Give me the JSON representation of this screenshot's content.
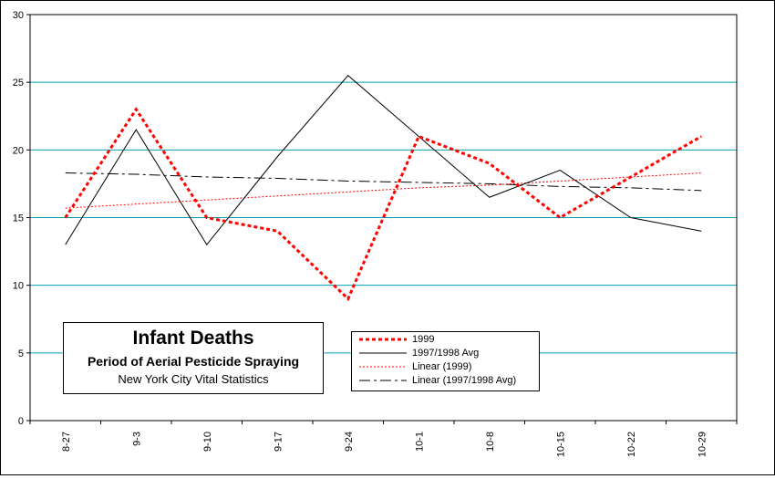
{
  "chart_data": {
    "type": "line",
    "title": "Infant Deaths",
    "subtitle": "Period of Aerial Pesticide Spraying",
    "source": "New York City Vital Statistics",
    "categories": [
      "8-27",
      "9-3",
      "9-10",
      "9-17",
      "9-24",
      "10-1",
      "10-8",
      "10-15",
      "10-22",
      "10-29"
    ],
    "ylim": [
      0,
      30
    ],
    "yticks": [
      0,
      5,
      10,
      15,
      20,
      25,
      30
    ],
    "grid": true,
    "grid_color": "#00a0b0",
    "series": [
      {
        "name": "1999",
        "values": [
          15,
          23,
          15,
          14,
          9,
          21,
          19,
          15,
          18,
          21
        ],
        "color": "#ff0000",
        "style": "dotted-bold"
      },
      {
        "name": "1997/1998 Avg",
        "values": [
          13,
          21.5,
          13,
          19.5,
          25.5,
          21,
          16.5,
          18.5,
          15,
          14
        ],
        "color": "#000000",
        "style": "solid"
      },
      {
        "name": "Linear (1999)",
        "values": [
          15.7,
          16.0,
          16.3,
          16.6,
          16.9,
          17.2,
          17.4,
          17.7,
          18.0,
          18.3
        ],
        "color": "#ff0000",
        "style": "dotted-thin"
      },
      {
        "name": "Linear (1997/1998 Avg)",
        "values": [
          18.3,
          18.2,
          18.0,
          17.9,
          17.7,
          17.6,
          17.5,
          17.3,
          17.2,
          17.0
        ],
        "color": "#000000",
        "style": "dash-dot"
      }
    ]
  }
}
